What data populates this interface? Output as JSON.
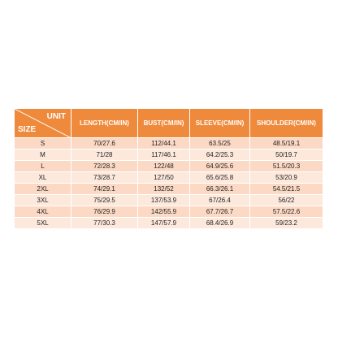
{
  "table": {
    "corner": {
      "top": "UNIT",
      "bottom": "SIZE"
    },
    "headers": [
      "LENGTH(CM/IN)",
      "BUST(CM/IN)",
      "SLEEVE(CM/IN)",
      "SHOULDER(CM/IN)"
    ],
    "rows": [
      [
        "S",
        "70/27.6",
        "112/44.1",
        "63.5/25",
        "48.5/19.1"
      ],
      [
        "M",
        "71/28",
        "117/46.1",
        "64.2/25.3",
        "50/19.7"
      ],
      [
        "L",
        "72/28.3",
        "122/48",
        "64.9/25.6",
        "51.5/20.3"
      ],
      [
        "XL",
        "73/28.7",
        "127/50",
        "65.6/25.8",
        "53/20.9"
      ],
      [
        "2XL",
        "74/29.1",
        "132/52",
        "66.3/26.1",
        "54.5/21.5"
      ],
      [
        "3XL",
        "75/29.5",
        "137/53.9",
        "67/26.4",
        "56/22"
      ],
      [
        "4XL",
        "76/29.9",
        "142/55.9",
        "67.7/26.7",
        "57.5/22.6"
      ],
      [
        "5XL",
        "77/30.3",
        "147/57.9",
        "68.4/26.9",
        "59/23.2"
      ]
    ]
  }
}
